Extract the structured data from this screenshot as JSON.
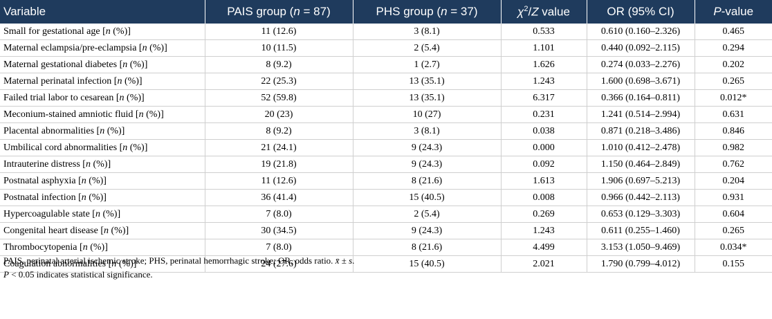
{
  "header": {
    "variable": "Variable",
    "pais_prefix": "PAIS group (",
    "pais_n": "n",
    "pais_suffix": " = 87)",
    "phs_prefix": "PHS group (",
    "phs_n": "n",
    "phs_suffix": " = 37)",
    "chi_symbol": "χ",
    "chi_sup": "2",
    "chi_sep": "/",
    "chi_z": "Z",
    "chi_suffix": " value",
    "or": "OR (95% CI)",
    "p_italic": "P",
    "p_suffix": "-value"
  },
  "n_symbol": "n",
  "rows": [
    {
      "variable": "Small for gestational age",
      "unit_pre": " [",
      "unit_post": " (%)]",
      "pais": "11 (12.6)",
      "phs": "3 (8.1)",
      "stat": "0.533",
      "or": "0.610 (0.160–2.326)",
      "p": "0.465"
    },
    {
      "variable": "Maternal eclampsia/pre-eclampsia",
      "unit_pre": " [",
      "unit_post": " (%)]",
      "pais": "10 (11.5)",
      "phs": "2 (5.4)",
      "stat": "1.101",
      "or": "0.440 (0.092–2.115)",
      "p": "0.294"
    },
    {
      "variable": "Maternal gestational diabetes",
      "unit_pre": " [",
      "unit_post": " (%)]",
      "pais": "8 (9.2)",
      "phs": "1 (2.7)",
      "stat": "1.626",
      "or": "0.274 (0.033–2.276)",
      "p": "0.202"
    },
    {
      "variable": "Maternal perinatal infection",
      "unit_pre": " [",
      "unit_post": " (%)]",
      "pais": "22 (25.3)",
      "phs": "13 (35.1)",
      "stat": "1.243",
      "or": "1.600 (0.698–3.671)",
      "p": "0.265"
    },
    {
      "variable": "Failed trial labor to cesarean",
      "unit_pre": " [",
      "unit_post": " (%)]",
      "pais": "52 (59.8)",
      "phs": "13 (35.1)",
      "stat": "6.317",
      "or": "0.366 (0.164–0.811)",
      "p": "0.012*"
    },
    {
      "variable": "Meconium-stained amniotic fluid",
      "unit_pre": " [",
      "unit_post": " (%)]",
      "pais": "20 (23)",
      "phs": "10 (27)",
      "stat": "0.231",
      "or": "1.241 (0.514–2.994)",
      "p": "0.631"
    },
    {
      "variable": "Placental abnormalities",
      "unit_pre": " [",
      "unit_post": " (%)]",
      "pais": "8 (9.2)",
      "phs": "3 (8.1)",
      "stat": "0.038",
      "or": "0.871 (0.218–3.486)",
      "p": "0.846"
    },
    {
      "variable": "Umbilical cord abnormalities",
      "unit_pre": " [",
      "unit_post": " (%)]",
      "pais": "21 (24.1)",
      "phs": "9 (24.3)",
      "stat": "0.000",
      "or": "1.010 (0.412–2.478)",
      "p": "0.982"
    },
    {
      "variable": "Intrauterine distress",
      "unit_pre": " [",
      "unit_post": " (%)]",
      "pais": "19 (21.8)",
      "phs": "9 (24.3)",
      "stat": "0.092",
      "or": "1.150 (0.464–2.849)",
      "p": "0.762"
    },
    {
      "variable": "Postnatal asphyxia",
      "unit_pre": " [",
      "unit_post": " (%)]",
      "pais": "11 (12.6)",
      "phs": "8 (21.6)",
      "stat": "1.613",
      "or": "1.906 (0.697–5.213)",
      "p": "0.204"
    },
    {
      "variable": "Postnatal infection",
      "unit_pre": " [",
      "unit_post": " (%)]",
      "pais": "36 (41.4)",
      "phs": "15 (40.5)",
      "stat": "0.008",
      "or": "0.966 (0.442–2.113)",
      "p": "0.931"
    },
    {
      "variable": "Hypercoagulable state",
      "unit_pre": " [",
      "unit_post": " (%)]",
      "pais": "7 (8.0)",
      "phs": "2 (5.4)",
      "stat": "0.269",
      "or": "0.653 (0.129–3.303)",
      "p": "0.604"
    },
    {
      "variable": "Congenital heart disease",
      "unit_pre": " [",
      "unit_post": " (%)]",
      "pais": "30 (34.5)",
      "phs": "9 (24.3)",
      "stat": "1.243",
      "or": "0.611 (0.255–1.460)",
      "p": "0.265"
    },
    {
      "variable": "Thrombocytopenia",
      "unit_pre": " [",
      "unit_post": " (%)]",
      "pais": "7 (8.0)",
      "phs": "8 (21.6)",
      "stat": "4.499",
      "or": "3.153 (1.050–9.469)",
      "p": "0.034*"
    },
    {
      "variable": "Coagulation abnormalities",
      "unit_pre": " [",
      "unit_post": " (%)]",
      "pais": "24 (27.6)",
      "phs": "15 (40.5)",
      "stat": "2.021",
      "or": "1.790 (0.799–4.012)",
      "p": "0.155"
    }
  ],
  "footnotes": {
    "line1_text": "PAIS, perinatal arterial ischemic stroke; PHS, perinatal hemorrhagic stroke; OR, odds ratio. ",
    "line1_xbar": "x̄",
    "line1_pm": " ± ",
    "line1_s": "s",
    "line1_end": ".",
    "line2_p": "P",
    "line2_text": " < 0.05 indicates statistical significance."
  }
}
